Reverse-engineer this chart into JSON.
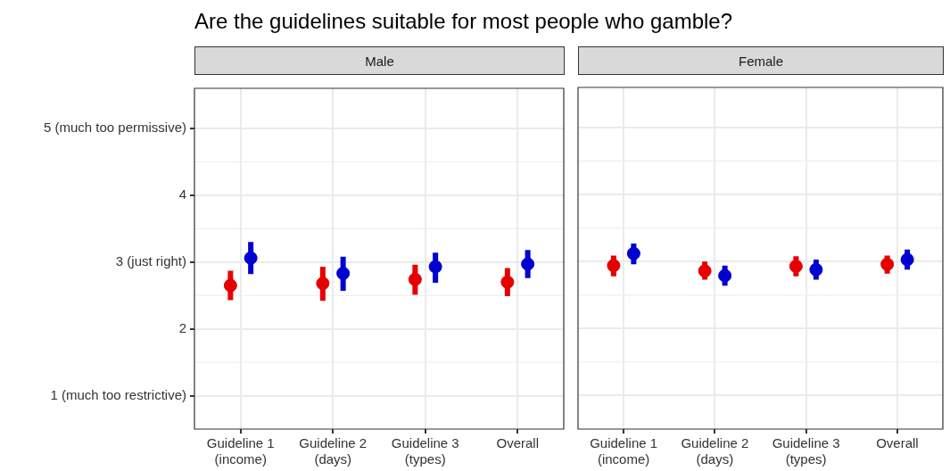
{
  "chart_data": [
    {
      "type": "scatter",
      "title": "Are the guidelines suitable for most people who gamble?",
      "subtitle": "Male",
      "categories": [
        "Guideline 1\n(income)",
        "Guideline 2\n(days)",
        "Guideline 3\n(types)",
        "Overall"
      ],
      "series": [
        {
          "color": "#e60000",
          "values": [
            2.65,
            2.68,
            2.74,
            2.7
          ],
          "errors": [
            [
              2.43,
              2.87
            ],
            [
              2.42,
              2.93
            ],
            [
              2.51,
              2.96
            ],
            [
              2.49,
              2.91
            ]
          ]
        },
        {
          "color": "#0000d0",
          "values": [
            3.06,
            2.83,
            2.93,
            2.97
          ],
          "errors": [
            [
              2.82,
              3.3
            ],
            [
              2.57,
              3.08
            ],
            [
              2.69,
              3.14
            ],
            [
              2.76,
              3.18
            ]
          ]
        }
      ],
      "ylim": [
        0.5,
        5.6
      ],
      "yticks": [
        {
          "value": 1,
          "label": "1 (much too restrictive)"
        },
        2,
        {
          "value": 3,
          "label": "3 (just right)"
        },
        4,
        {
          "value": 5,
          "label": "5 (much too permissive)"
        }
      ],
      "grid": true,
      "marker": "circle"
    },
    {
      "type": "scatter",
      "subtitle": "Female",
      "categories": [
        "Guideline 1\n(income)",
        "Guideline 2\n(days)",
        "Guideline 3\n(types)",
        "Overall"
      ],
      "series": [
        {
          "color": "#e60000",
          "values": [
            2.94,
            2.86,
            2.93,
            2.96
          ],
          "errors": [
            [
              2.78,
              3.09
            ],
            [
              2.73,
              3.0
            ],
            [
              2.78,
              3.08
            ],
            [
              2.82,
              3.09
            ]
          ]
        },
        {
          "color": "#0000d0",
          "values": [
            3.12,
            2.79,
            2.88,
            3.03
          ],
          "errors": [
            [
              2.96,
              3.27
            ],
            [
              2.64,
              2.94
            ],
            [
              2.73,
              3.03
            ],
            [
              2.88,
              3.18
            ]
          ]
        }
      ],
      "ylim": [
        0.5,
        5.6
      ],
      "yticks": [
        1,
        2,
        3,
        4,
        5
      ],
      "grid": true,
      "marker": "circle",
      "tick_labels": "x"
    }
  ]
}
